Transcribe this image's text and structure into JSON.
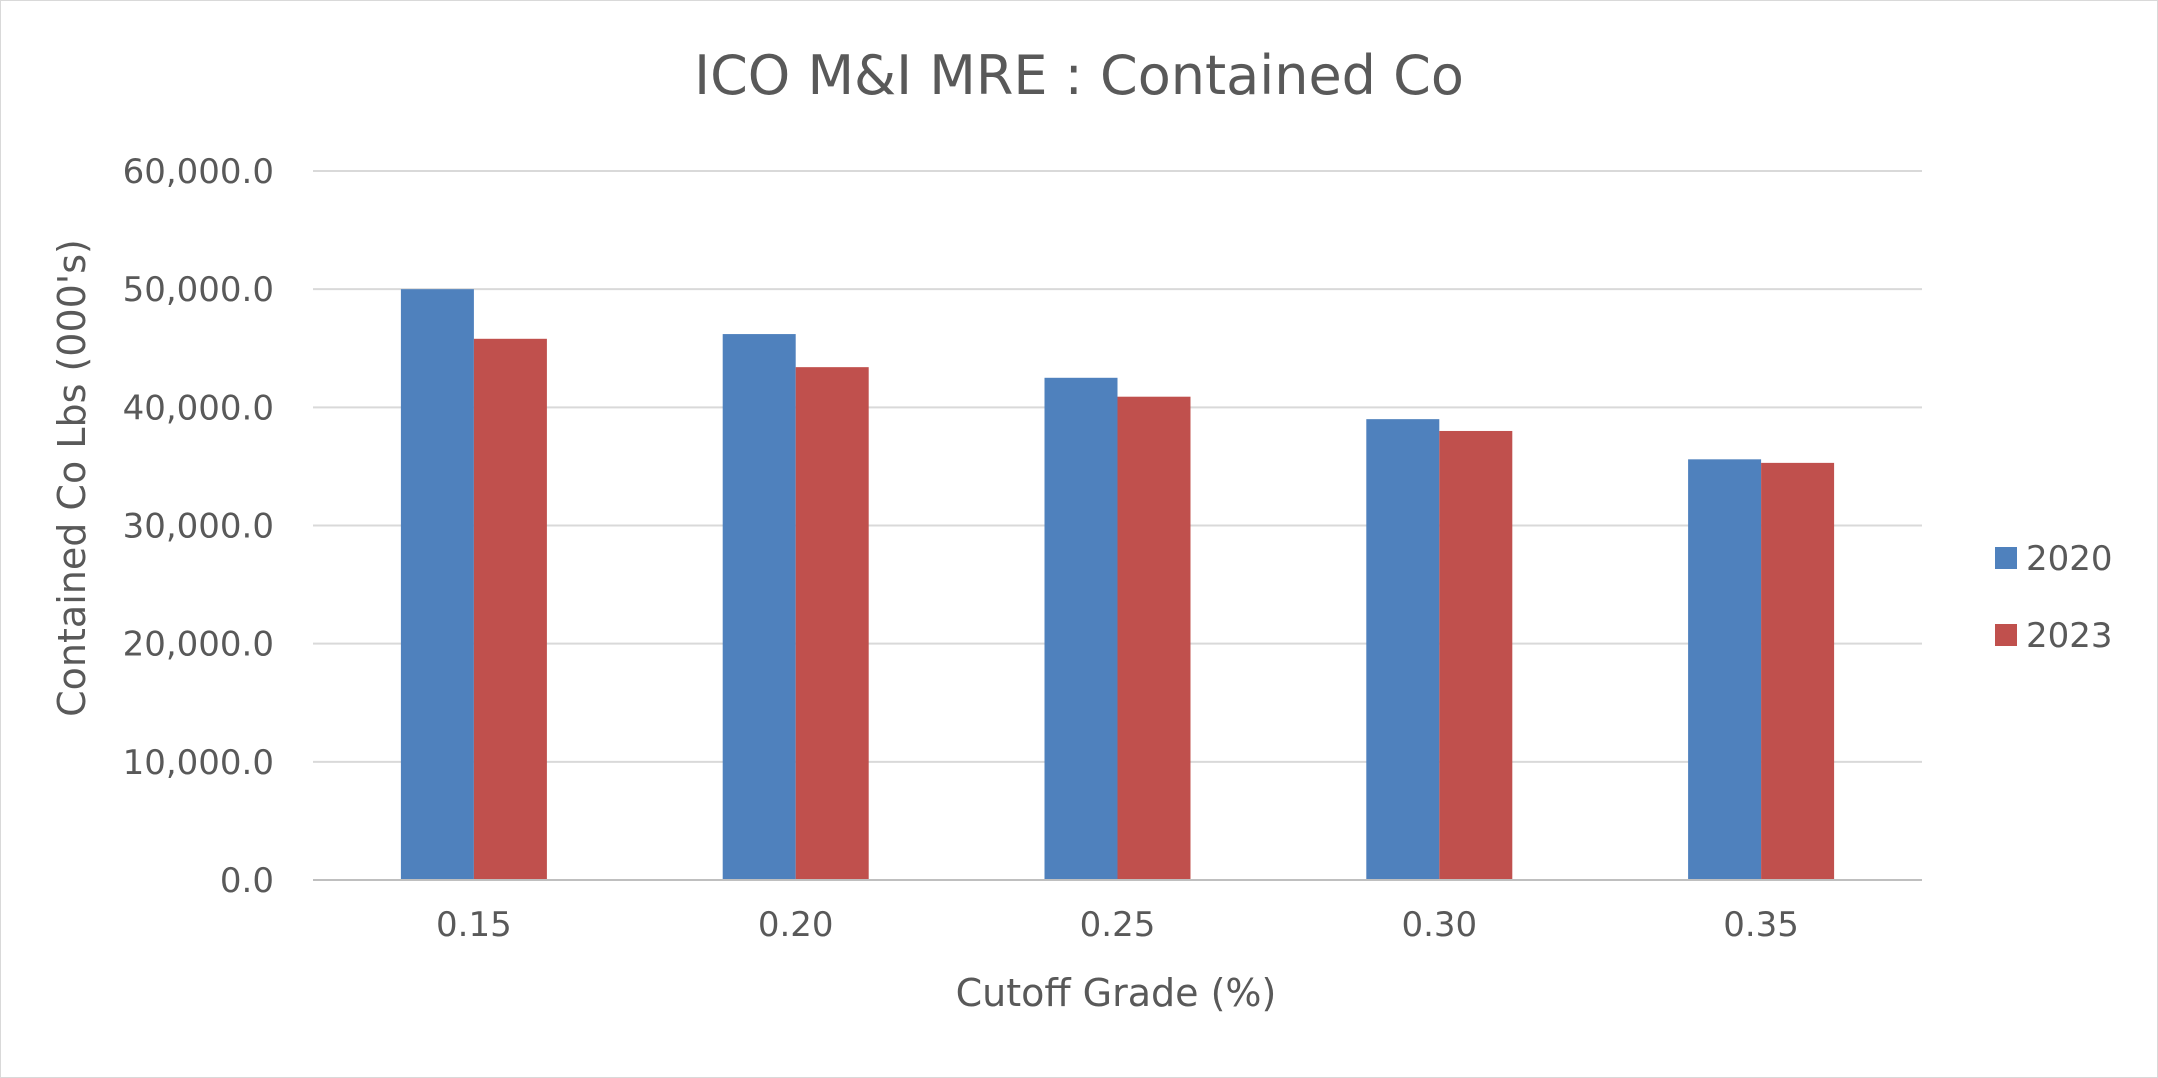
{
  "chart_data": {
    "type": "bar",
    "title": "ICO M&I MRE : Contained Co",
    "xlabel": "Cutoff Grade (%)",
    "ylabel": "Contained Co Lbs (000's)",
    "categories": [
      "0.15",
      "0.20",
      "0.25",
      "0.30",
      "0.35"
    ],
    "series": [
      {
        "name": "2020",
        "color": "#4f81bd",
        "values": [
          50000,
          46200,
          42500,
          39000,
          35600
        ]
      },
      {
        "name": "2023",
        "color": "#c0504d",
        "values": [
          45800,
          43400,
          40900,
          38000,
          35300
        ]
      }
    ],
    "ylim": [
      0,
      60000
    ],
    "yticks": [
      0,
      10000,
      20000,
      30000,
      40000,
      50000,
      60000
    ],
    "ytick_labels": [
      "0.0",
      "10,000.0",
      "20,000.0",
      "30,000.0",
      "40,000.0",
      "50,000.0",
      "60,000.0"
    ],
    "grid": true,
    "legend_position": "right"
  }
}
